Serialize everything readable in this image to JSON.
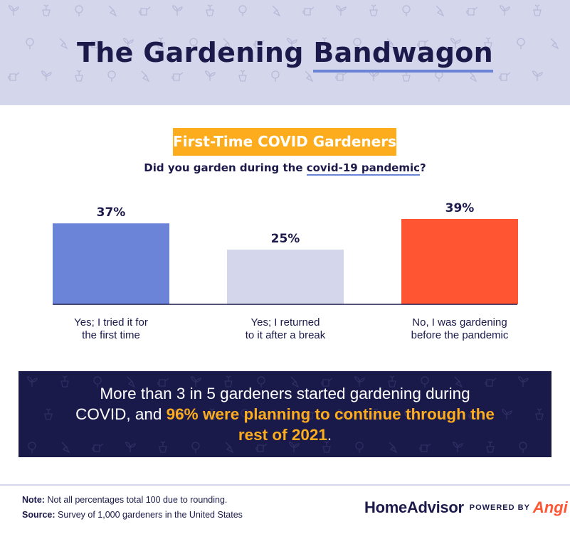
{
  "header": {
    "title_prefix": "The Gardening",
    "title_emphasis": "Bandwagon"
  },
  "subtitle": "First-Time COVID Gardeners",
  "question": {
    "prefix": "Did you garden during the",
    "underlined": "covid-19 pandemic",
    "suffix": "?"
  },
  "chart_data": {
    "type": "bar",
    "categories": [
      "Yes; I tried it for the first time",
      "Yes; I returned to it after a break",
      "No, I was gardening before the pandemic"
    ],
    "category_lines": [
      [
        "Yes; I tried it for",
        "the first time"
      ],
      [
        "Yes; I returned",
        "to it after a break"
      ],
      [
        "No, I was gardening",
        "before the pandemic"
      ]
    ],
    "values": [
      37,
      25,
      39
    ],
    "value_labels": [
      "37%",
      "25%",
      "39%"
    ],
    "colors": [
      "#6b84d7",
      "#d4d6ec",
      "#ff5533"
    ],
    "ylim": [
      0,
      39
    ],
    "grid": false,
    "title": "First-Time COVID Gardeners",
    "xlabel": "",
    "ylabel": ""
  },
  "banner": {
    "line1": "More than 3 in 5 gardeners started gardening during",
    "line2_start": "COVID, and",
    "line2_highlight": "96% were planning to continue through the",
    "line3_highlight": "rest of 2021",
    "line3_end": "."
  },
  "footer": {
    "note_label": "Note:",
    "note_text": "Not all percentages total 100 due to rounding.",
    "source_label": "Source:",
    "source_text": "Survey of 1,000 gardeners in the United States"
  },
  "brand": {
    "name": "HomeAdvisor",
    "powered_by": "POWERED BY",
    "partner": "Angi"
  },
  "colors": {
    "navy": "#1b1a4b",
    "header_bg": "#d4d6ec",
    "accent_orange": "#fcac1c",
    "accent_blue": "#6b84d7",
    "accent_red": "#ff5533",
    "banner_bg": "#1a1a4a"
  }
}
